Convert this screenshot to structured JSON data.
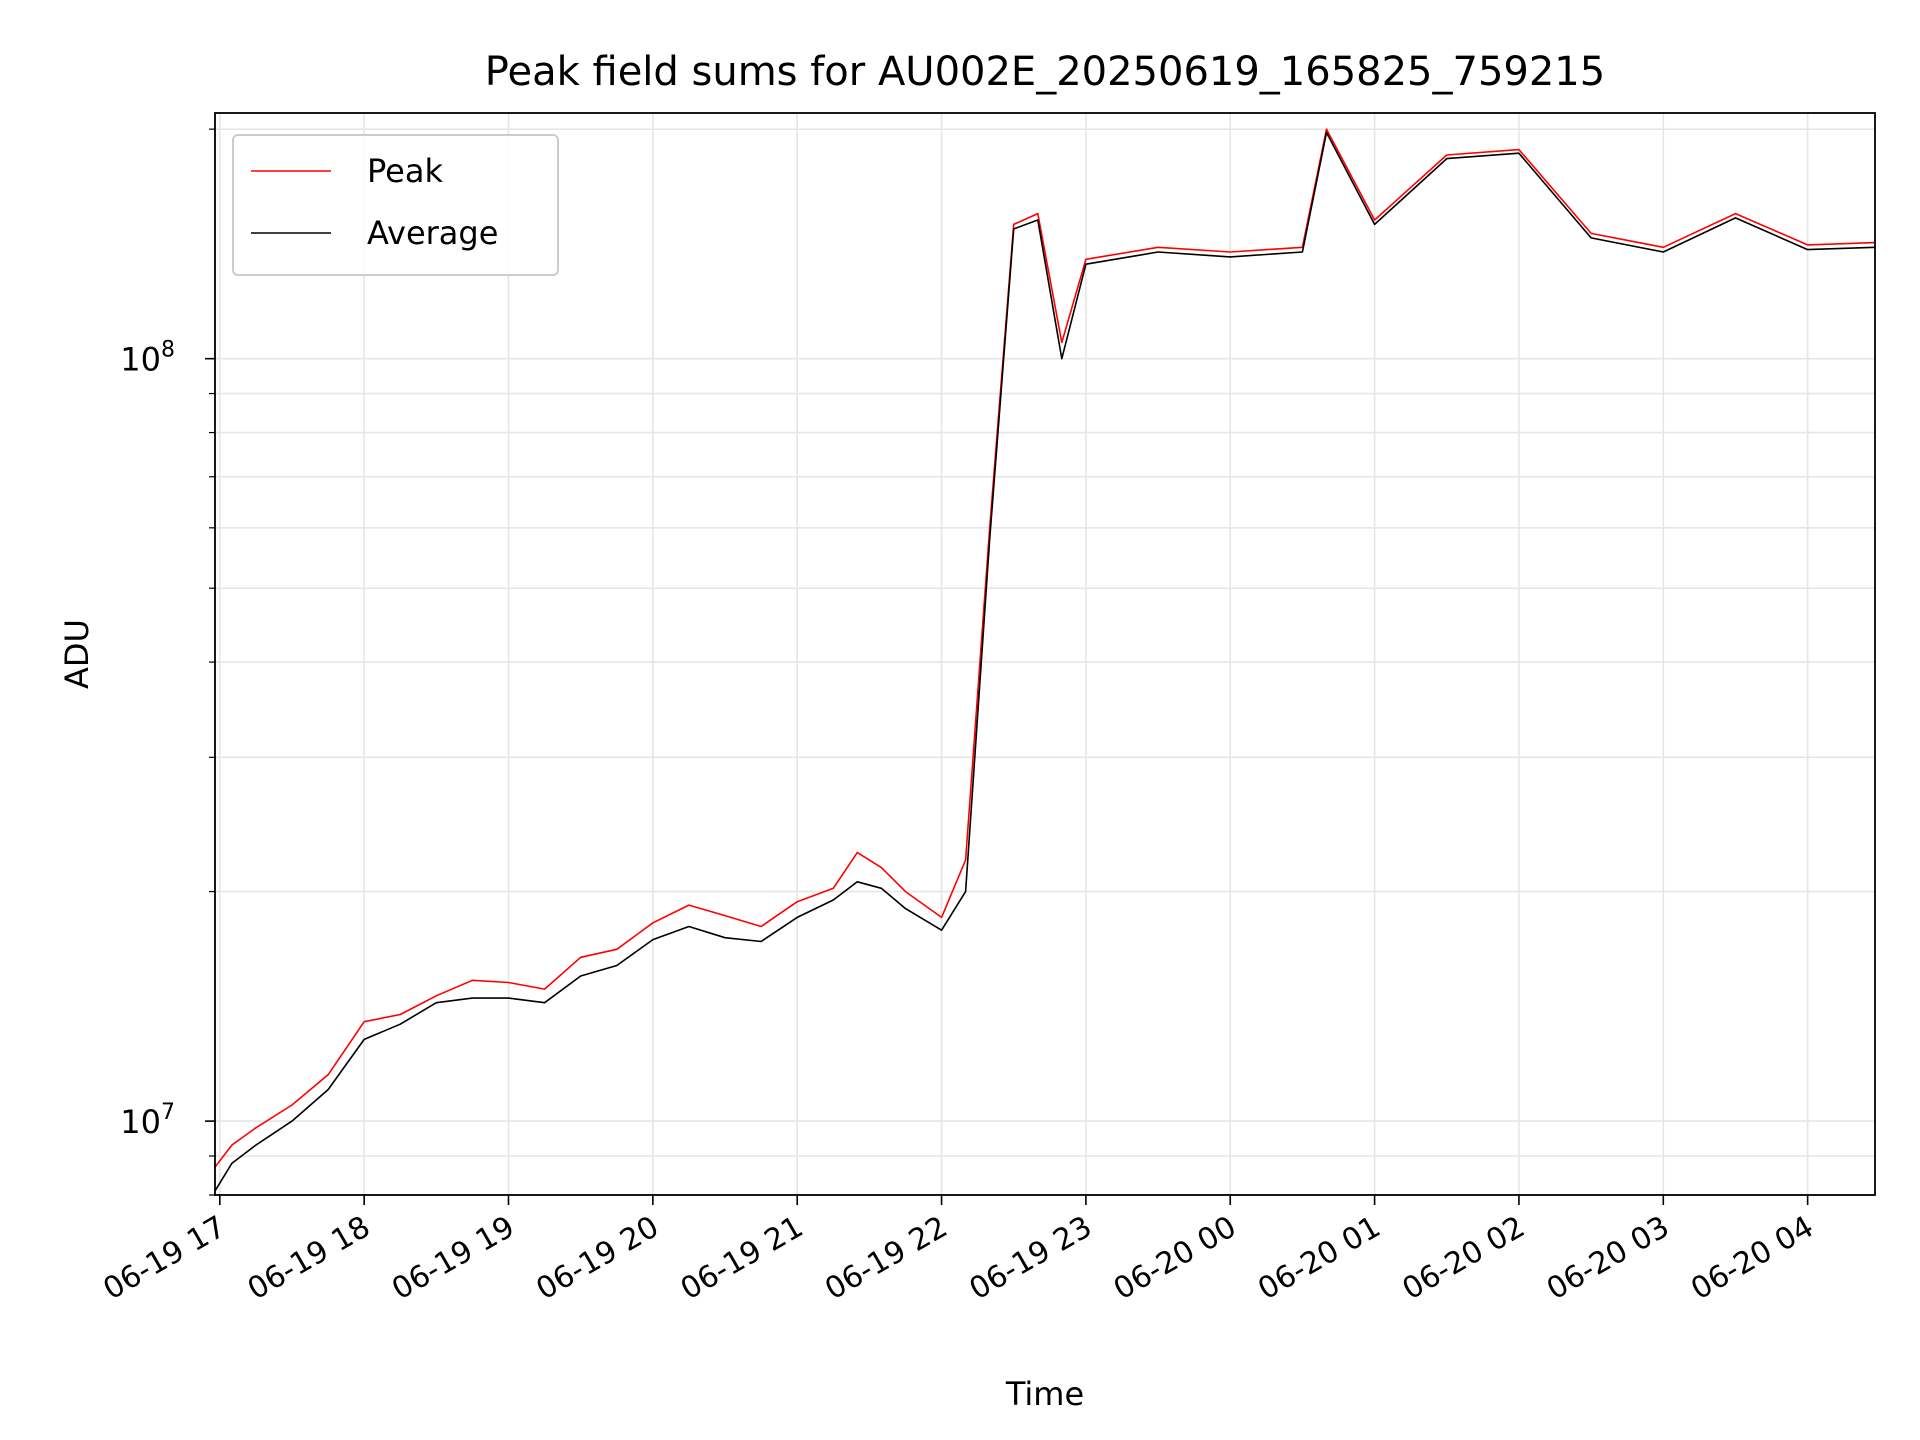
{
  "chart_data": {
    "type": "line",
    "title": "Peak field sums for AU002E_20250619_165825_759215",
    "xlabel": "Time",
    "ylabel": "ADU",
    "y_scale": "log",
    "ylim": [
      8000000,
      210000000
    ],
    "xlim": [
      "06-19 16:58",
      "06-20 04:28"
    ],
    "grid": true,
    "legend_position": "top-left",
    "x_ticks": [
      "06-19 17",
      "06-19 18",
      "06-19 19",
      "06-19 20",
      "06-19 21",
      "06-19 22",
      "06-19 23",
      "06-20 00",
      "06-20 01",
      "06-20 02",
      "06-20 03",
      "06-20 04"
    ],
    "y_ticks": [
      {
        "value": 10000000,
        "base": "10",
        "exp": "7"
      },
      {
        "value": 100000000,
        "base": "10",
        "exp": "8"
      }
    ],
    "series": [
      {
        "name": "Peak",
        "color": "#ff0000",
        "x": [
          "06-19 16:58",
          "06-19 17:05",
          "06-19 17:15",
          "06-19 17:30",
          "06-19 17:45",
          "06-19 18:00",
          "06-19 18:15",
          "06-19 18:30",
          "06-19 18:45",
          "06-19 19:00",
          "06-19 19:15",
          "06-19 19:30",
          "06-19 19:45",
          "06-19 20:00",
          "06-19 20:15",
          "06-19 20:30",
          "06-19 20:45",
          "06-19 21:00",
          "06-19 21:15",
          "06-19 21:25",
          "06-19 21:35",
          "06-19 21:45",
          "06-19 22:00",
          "06-19 22:10",
          "06-19 22:20",
          "06-19 22:30",
          "06-19 22:40",
          "06-19 22:50",
          "06-19 23:00",
          "06-19 23:30",
          "06-20 00:00",
          "06-20 00:30",
          "06-20 00:40",
          "06-20 01:00",
          "06-20 01:30",
          "06-20 02:00",
          "06-20 02:30",
          "06-20 03:00",
          "06-20 03:30",
          "06-20 04:00",
          "06-20 04:28"
        ],
        "y": [
          8700000,
          9300000,
          9800000,
          10500000,
          11500000,
          13500000,
          13800000,
          14600000,
          15300000,
          15200000,
          14900000,
          16400000,
          16800000,
          18200000,
          19200000,
          18600000,
          18000000,
          19400000,
          20200000,
          22500000,
          21500000,
          20000000,
          18500000,
          22000000,
          60000000,
          150000000,
          155000000,
          105000000,
          135000000,
          140000000,
          138000000,
          140000000,
          200000000,
          152000000,
          185000000,
          188000000,
          146000000,
          140000000,
          155000000,
          141000000,
          142000000
        ]
      },
      {
        "name": "Average",
        "color": "#000000",
        "x": [
          "06-19 16:58",
          "06-19 17:05",
          "06-19 17:15",
          "06-19 17:30",
          "06-19 17:45",
          "06-19 18:00",
          "06-19 18:15",
          "06-19 18:30",
          "06-19 18:45",
          "06-19 19:00",
          "06-19 19:15",
          "06-19 19:30",
          "06-19 19:45",
          "06-19 20:00",
          "06-19 20:15",
          "06-19 20:30",
          "06-19 20:45",
          "06-19 21:00",
          "06-19 21:15",
          "06-19 21:25",
          "06-19 21:35",
          "06-19 21:45",
          "06-19 22:00",
          "06-19 22:10",
          "06-19 22:20",
          "06-19 22:30",
          "06-19 22:40",
          "06-19 22:50",
          "06-19 23:00",
          "06-19 23:30",
          "06-20 00:00",
          "06-20 00:30",
          "06-20 00:40",
          "06-20 01:00",
          "06-20 01:30",
          "06-20 02:00",
          "06-20 02:30",
          "06-20 03:00",
          "06-20 03:30",
          "06-20 04:00",
          "06-20 04:28"
        ],
        "y": [
          8100000,
          8800000,
          9300000,
          10000000,
          11000000,
          12800000,
          13400000,
          14300000,
          14500000,
          14500000,
          14300000,
          15500000,
          16000000,
          17300000,
          18000000,
          17400000,
          17200000,
          18500000,
          19500000,
          20600000,
          20200000,
          19000000,
          17800000,
          20000000,
          58000000,
          148000000,
          152000000,
          100000000,
          133000000,
          138000000,
          136000000,
          138000000,
          198000000,
          150000000,
          183000000,
          186000000,
          144000000,
          138000000,
          153000000,
          139000000,
          140000000
        ]
      }
    ]
  }
}
